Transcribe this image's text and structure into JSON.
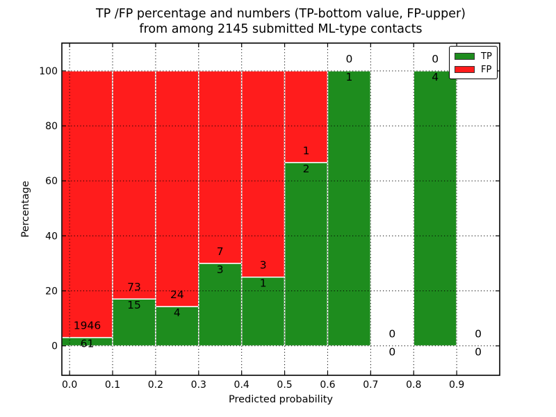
{
  "chart_data": {
    "type": "bar",
    "subtype": "stacked-percentage-histogram",
    "title_lines": [
      "TP /FP percentage and numbers (TP-bottom value, FP-upper)",
      "from among 2145 submitted ML-type contacts"
    ],
    "xlabel": "Predicted probability",
    "ylabel": "Percentage",
    "total_contacts_shown_in_title": 2145,
    "xlim": [
      -0.018,
      1.0
    ],
    "ylim": [
      -10.7,
      110.1
    ],
    "grid": "dotted",
    "x_tick_values": [
      0.0,
      0.1,
      0.2,
      0.3,
      0.4,
      0.5,
      0.6,
      0.7,
      0.8,
      0.9
    ],
    "x_ticks": [
      "0.0",
      "0.1",
      "0.2",
      "0.3",
      "0.4",
      "0.5",
      "0.6",
      "0.7",
      "0.8",
      "0.9"
    ],
    "y_ticks": [
      0,
      20,
      40,
      60,
      80,
      100
    ],
    "colors": {
      "tp": "#1e8c1e",
      "fp": "#ff1c1c",
      "bar_edge": "#ffffff",
      "axis": "#000000"
    },
    "legend": {
      "position": "upper right",
      "entries": [
        {
          "label": "TP",
          "color": "#1e8c1e"
        },
        {
          "label": "FP",
          "color": "#ff1c1c"
        }
      ]
    },
    "bins": [
      {
        "range": [
          0.0,
          0.1
        ],
        "tp": 61,
        "fp": 1946,
        "tp_pct": 3.04
      },
      {
        "range": [
          0.1,
          0.2
        ],
        "tp": 15,
        "fp": 73,
        "tp_pct": 17.05
      },
      {
        "range": [
          0.2,
          0.3
        ],
        "tp": 4,
        "fp": 24,
        "tp_pct": 14.29
      },
      {
        "range": [
          0.3,
          0.4
        ],
        "tp": 3,
        "fp": 7,
        "tp_pct": 30.0
      },
      {
        "range": [
          0.4,
          0.5
        ],
        "tp": 1,
        "fp": 3,
        "tp_pct": 25.0
      },
      {
        "range": [
          0.5,
          0.6
        ],
        "tp": 2,
        "fp": 1,
        "tp_pct": 66.67
      },
      {
        "range": [
          0.6,
          0.7
        ],
        "tp": 1,
        "fp": 0,
        "tp_pct": 100.0
      },
      {
        "range": [
          0.7,
          0.8
        ],
        "tp": 0,
        "fp": 0,
        "tp_pct": 0.0
      },
      {
        "range": [
          0.8,
          0.9
        ],
        "tp": 4,
        "fp": 0,
        "tp_pct": 100.0
      },
      {
        "range": [
          0.9,
          1.0
        ],
        "tp": 0,
        "fp": 0,
        "tp_pct": 0.0
      }
    ]
  }
}
